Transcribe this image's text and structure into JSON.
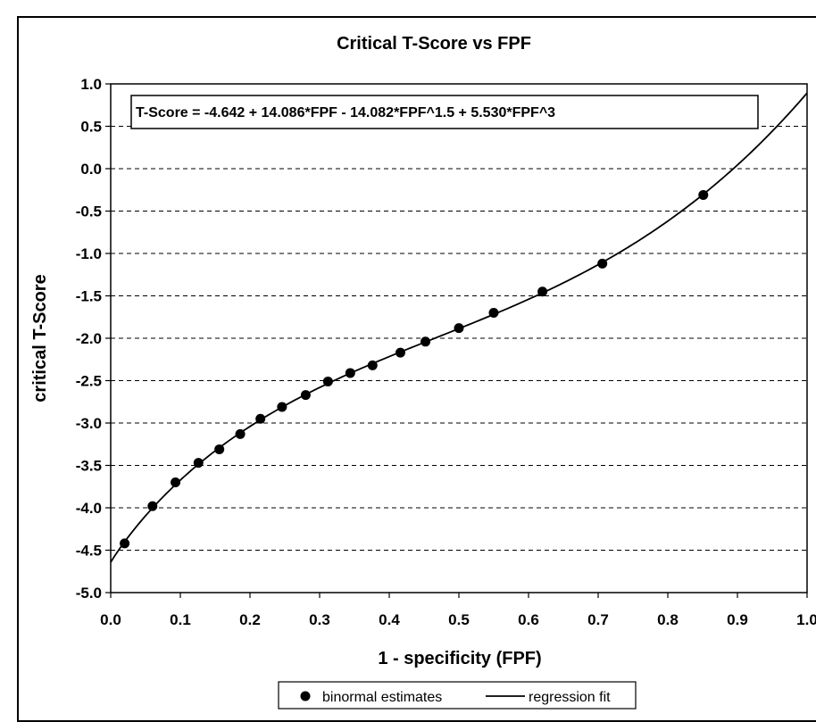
{
  "chart_data": {
    "type": "scatter",
    "title": "Critical T-Score vs FPF",
    "xlabel": "1 - specificity (FPF)",
    "ylabel": "critical T-Score",
    "xlim": [
      0.0,
      1.0
    ],
    "ylim": [
      -5.0,
      1.0
    ],
    "x_ticks": [
      "0.0",
      "0.1",
      "0.2",
      "0.3",
      "0.4",
      "0.5",
      "0.6",
      "0.7",
      "0.8",
      "0.9",
      "1.0"
    ],
    "y_ticks": [
      "1.0",
      "0.5",
      "0.0",
      "-0.5",
      "-1.0",
      "-1.5",
      "-2.0",
      "-2.5",
      "-3.0",
      "-3.5",
      "-4.0",
      "-4.5",
      "-5.0"
    ],
    "grid": "horizontal dashed",
    "legend_position": "bottom",
    "annotation": "T-Score = -4.642 + 14.086*FPF - 14.082*FPF^1.5 + 5.530*FPF^3",
    "series": [
      {
        "name": "binormal estimates",
        "kind": "points",
        "x": [
          0.02,
          0.06,
          0.093,
          0.126,
          0.156,
          0.186,
          0.215,
          0.246,
          0.28,
          0.312,
          0.344,
          0.376,
          0.416,
          0.452,
          0.5,
          0.55,
          0.62,
          0.706,
          0.851
        ],
        "y": [
          -4.42,
          -3.98,
          -3.7,
          -3.47,
          -3.31,
          -3.13,
          -2.95,
          -2.81,
          -2.67,
          -2.51,
          -2.41,
          -2.32,
          -2.17,
          -2.04,
          -1.88,
          -1.7,
          -1.45,
          -1.12,
          -0.31
        ]
      },
      {
        "name": "regression fit",
        "kind": "line",
        "coefficients": {
          "a": -4.642,
          "b": 14.086,
          "c": -14.082,
          "d": 5.53
        }
      }
    ],
    "colors": {
      "points": "#000000",
      "line": "#000000",
      "grid": "#000000"
    }
  }
}
